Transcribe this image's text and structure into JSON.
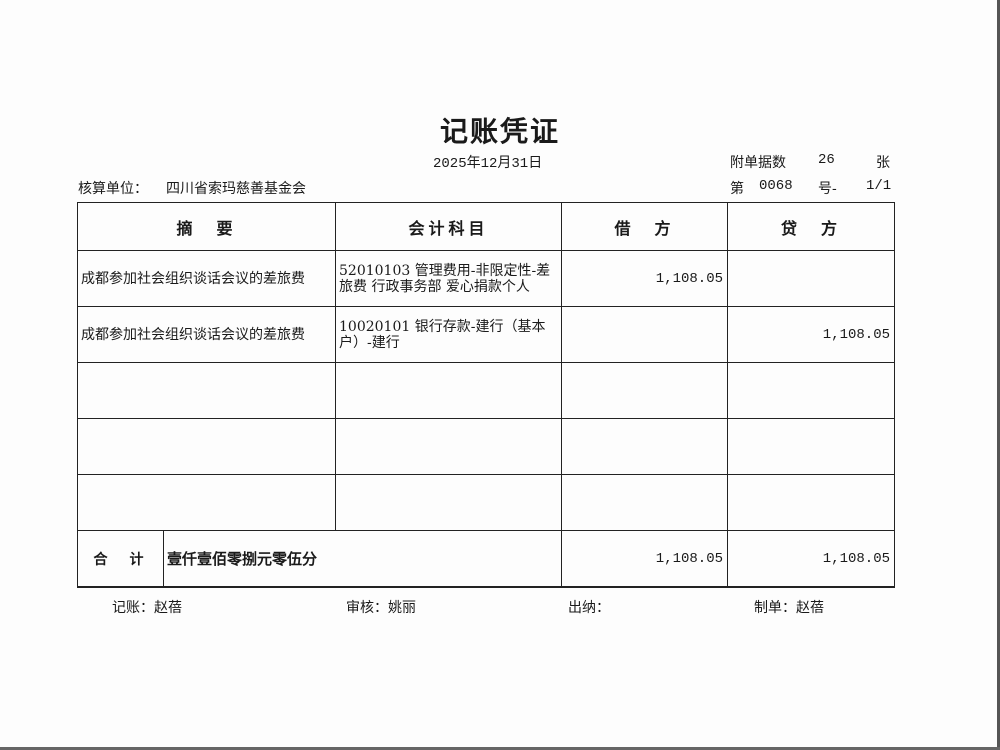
{
  "title": "记账凭证",
  "date": "2025年12月31日",
  "attachments": {
    "label": "附单据数",
    "count": "26",
    "unit": "张"
  },
  "unit": {
    "label": "核算单位：",
    "value": "四川省索玛慈善基金会"
  },
  "voucher_no": {
    "prefix": "第",
    "number": "0068",
    "suffix": "号-",
    "page": "1/1"
  },
  "headers": [
    "摘　要",
    "会计科目",
    "借　方",
    "贷　方"
  ],
  "rows": [
    {
      "summary": "成都参加社会组织谈话会议的差旅费",
      "account": "52010103 管理费用-非限定性-差旅费 行政事务部 爱心捐款个人",
      "debit": "1,108.05",
      "credit": ""
    },
    {
      "summary": "成都参加社会组织谈话会议的差旅费",
      "account": "10020101 银行存款-建行（基本户）-建行",
      "debit": "",
      "credit": "1,108.05"
    },
    {
      "summary": "",
      "account": "",
      "debit": "",
      "credit": ""
    },
    {
      "summary": "",
      "account": "",
      "debit": "",
      "credit": ""
    },
    {
      "summary": "",
      "account": "",
      "debit": "",
      "credit": ""
    }
  ],
  "total": {
    "label": "合　计",
    "words": "壹仟壹佰零捌元零伍分",
    "debit": "1,108.05",
    "credit": "1,108.05"
  },
  "signatures": {
    "bookkeeper": "记账：赵蓓",
    "reviewer": "审核：姚丽",
    "cashier": "出纳：",
    "preparer": "制单：赵蓓"
  }
}
